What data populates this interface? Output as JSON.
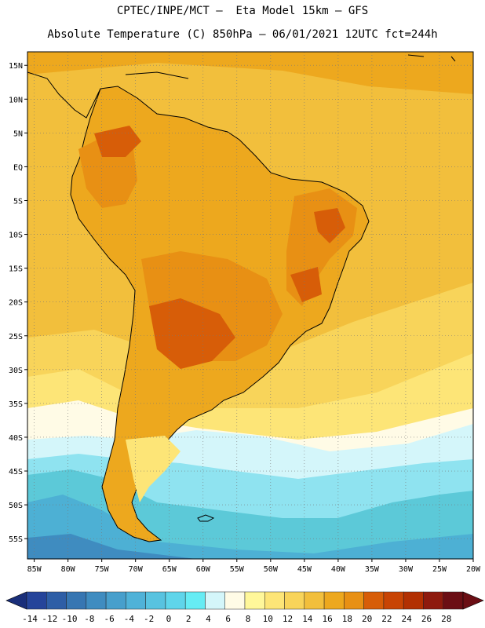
{
  "title": {
    "line1": "CPTEC/INPE/MCT –  Eta Model 15km – GFS",
    "line2": "Absolute Temperature (C) 850hPa – 06/01/2021 12UTC fct=244h"
  },
  "map": {
    "lon_range": [
      -86,
      -20
    ],
    "lat_range": [
      -58,
      17
    ],
    "lat_ticks": [
      {
        "value": 15,
        "label": "15N"
      },
      {
        "value": 10,
        "label": "10N"
      },
      {
        "value": 5,
        "label": "5N"
      },
      {
        "value": 0,
        "label": "EQ"
      },
      {
        "value": -5,
        "label": "5S"
      },
      {
        "value": -10,
        "label": "10S"
      },
      {
        "value": -15,
        "label": "15S"
      },
      {
        "value": -20,
        "label": "20S"
      },
      {
        "value": -25,
        "label": "25S"
      },
      {
        "value": -30,
        "label": "30S"
      },
      {
        "value": -35,
        "label": "35S"
      },
      {
        "value": -40,
        "label": "40S"
      },
      {
        "value": -45,
        "label": "45S"
      },
      {
        "value": -50,
        "label": "50S"
      },
      {
        "value": -55,
        "label": "55S"
      }
    ],
    "lon_ticks": [
      {
        "value": -85,
        "label": "85W"
      },
      {
        "value": -80,
        "label": "80W"
      },
      {
        "value": -75,
        "label": "75W"
      },
      {
        "value": -70,
        "label": "70W"
      },
      {
        "value": -65,
        "label": "65W"
      },
      {
        "value": -60,
        "label": "60W"
      },
      {
        "value": -55,
        "label": "55W"
      },
      {
        "value": -50,
        "label": "50W"
      },
      {
        "value": -45,
        "label": "45W"
      },
      {
        "value": -40,
        "label": "40W"
      },
      {
        "value": -35,
        "label": "35W"
      },
      {
        "value": -30,
        "label": "30W"
      },
      {
        "value": -25,
        "label": "25W"
      },
      {
        "value": -20,
        "label": "20W"
      }
    ]
  },
  "colorbar": {
    "labels": [
      "-14",
      "-12",
      "-10",
      "-8",
      "-6",
      "-4",
      "-2",
      "0",
      "2",
      "4",
      "6",
      "8",
      "10",
      "12",
      "14",
      "16",
      "18",
      "20",
      "22",
      "24",
      "26",
      "28"
    ],
    "under_color": "#1a2f7a",
    "over_color": "#6b0e14",
    "colors": [
      "#25449a",
      "#2e5ea6",
      "#3776b2",
      "#3f8cc0",
      "#479fcc",
      "#4fb2d8",
      "#58c3e0",
      "#5fd5ea",
      "#66ecf4",
      "#d4f6fa",
      "#fffbe6",
      "#fff79a",
      "#fde577",
      "#f8d45a",
      "#f2bf3c",
      "#eda81e",
      "#e89014",
      "#d75d08",
      "#c84404",
      "#b23002",
      "#8e1a0e",
      "#6b0e14"
    ]
  },
  "field_colors": {
    "ocean_cold": "#8fe3f0",
    "ocean_teal": "#5cc9d8",
    "ocean_mid": "#4db0d4",
    "ocean_blue": "#3f8cc0",
    "pale": "#fffbe6",
    "pale_blue": "#d4f6fa",
    "yellow": "#fde577",
    "light_orange": "#f8d45a",
    "orange": "#f2bf3c",
    "deep_orange": "#eda81e",
    "hot": "#e89014",
    "hotter": "#d75d08"
  }
}
